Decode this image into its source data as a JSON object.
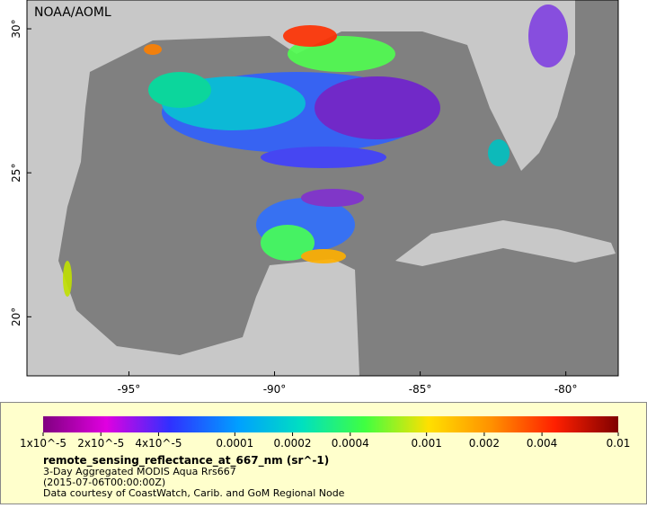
{
  "map": {
    "credit": "NOAA/AOML",
    "xlim": [
      -98.5,
      -78.2
    ],
    "ylim": [
      17.95,
      31.0
    ],
    "xticks": [
      {
        "value": -95,
        "label": "-95°"
      },
      {
        "value": -90,
        "label": "-90°"
      },
      {
        "value": -85,
        "label": "-85°"
      },
      {
        "value": -80,
        "label": "-80°"
      }
    ],
    "yticks": [
      {
        "value": 20,
        "label": "20°"
      },
      {
        "value": 25,
        "label": "25°"
      },
      {
        "value": 30,
        "label": "30°"
      }
    ]
  },
  "colorbar": {
    "scale": "log",
    "lim": [
      1e-05,
      0.01
    ],
    "ticks": [
      {
        "value": 1e-05,
        "label": "1x10^-5"
      },
      {
        "value": 2e-05,
        "label": "2x10^-5"
      },
      {
        "value": 4e-05,
        "label": "4x10^-5"
      },
      0.0001,
      0.0002,
      0.0004,
      0.001,
      0.002,
      0.004,
      0.01
    ]
  },
  "legend": {
    "title": "remote_sensing_reflectance_at_667_nm (sr^-1)",
    "lines": [
      "3-Day Aggregated MODIS Aqua Rrs667",
      "(2015-07-06T00:00:00Z)",
      "Data courtesy of CoastWatch, Carib. and GoM Regional Node"
    ]
  }
}
